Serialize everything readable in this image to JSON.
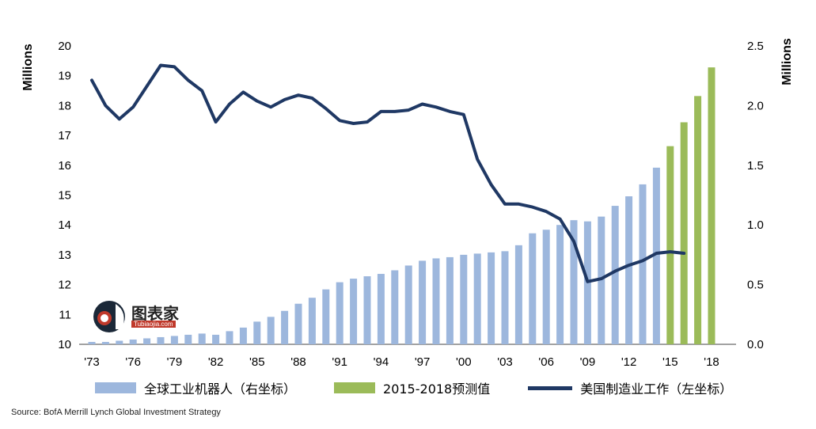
{
  "chart_data": {
    "type": "bar+line",
    "x_tick_labels": [
      "'73",
      "'76",
      "'79",
      "'82",
      "'85",
      "'88",
      "'91",
      "'94",
      "'97",
      "'00",
      "'03",
      "'06",
      "'09",
      "'12",
      "'15",
      "'18"
    ],
    "left_axis": {
      "label": "Millions",
      "min": 10,
      "max": 20,
      "ticks": [
        "10",
        "11",
        "12",
        "13",
        "14",
        "15",
        "16",
        "17",
        "18",
        "19",
        "20"
      ]
    },
    "right_axis": {
      "label": "Millions",
      "min": 0,
      "max": 2.5,
      "ticks": [
        "0.0",
        "0.5",
        "1.0",
        "1.5",
        "2.0",
        "2.5"
      ]
    },
    "series": [
      {
        "name": "全球工业机器人（右坐标）",
        "type": "bar",
        "axis": "right",
        "color": "#9db7dd",
        "x": [
          1973,
          1974,
          1975,
          1976,
          1977,
          1978,
          1979,
          1980,
          1981,
          1982,
          1983,
          1984,
          1985,
          1986,
          1987,
          1988,
          1989,
          1990,
          1991,
          1992,
          1993,
          1994,
          1995,
          1996,
          1997,
          1998,
          1999,
          2000,
          2001,
          2002,
          2003,
          2004,
          2005,
          2006,
          2007,
          2008,
          2009,
          2010,
          2011,
          2012,
          2013,
          2014
        ],
        "values": [
          0.02,
          0.02,
          0.03,
          0.04,
          0.05,
          0.06,
          0.07,
          0.08,
          0.09,
          0.08,
          0.11,
          0.14,
          0.19,
          0.23,
          0.28,
          0.34,
          0.39,
          0.46,
          0.52,
          0.55,
          0.57,
          0.59,
          0.62,
          0.66,
          0.7,
          0.72,
          0.73,
          0.75,
          0.76,
          0.77,
          0.78,
          0.83,
          0.93,
          0.96,
          1.0,
          1.04,
          1.03,
          1.07,
          1.16,
          1.24,
          1.34,
          1.48
        ]
      },
      {
        "name": "2015-2018预测值",
        "type": "bar",
        "axis": "right",
        "color": "#9bbb59",
        "x": [
          2015,
          2016,
          2017,
          2018
        ],
        "values": [
          1.66,
          1.86,
          2.08,
          2.32
        ]
      },
      {
        "name": "美国制造业工作（左坐标）",
        "type": "line",
        "axis": "left",
        "color": "#1f3864",
        "x": [
          1973,
          1974,
          1975,
          1976,
          1977,
          1978,
          1979,
          1980,
          1981,
          1982,
          1983,
          1984,
          1985,
          1986,
          1987,
          1988,
          1989,
          1990,
          1991,
          1992,
          1993,
          1994,
          1995,
          1996,
          1997,
          1998,
          1999,
          2000,
          2001,
          2002,
          2003,
          2004,
          2005,
          2006,
          2007,
          2008,
          2009,
          2010,
          2011,
          2012,
          2013,
          2014,
          2015,
          2016
        ],
        "values": [
          18.85,
          18.0,
          17.55,
          17.95,
          18.65,
          19.35,
          19.3,
          18.85,
          18.5,
          17.45,
          18.05,
          18.45,
          18.15,
          17.95,
          18.2,
          18.35,
          18.25,
          17.9,
          17.5,
          17.4,
          17.45,
          17.8,
          17.8,
          17.85,
          18.05,
          17.95,
          17.8,
          17.7,
          16.2,
          15.35,
          14.7,
          14.7,
          14.6,
          14.45,
          14.2,
          13.45,
          12.1,
          12.2,
          12.45,
          12.65,
          12.8,
          13.05,
          13.1,
          13.05
        ]
      }
    ],
    "legend_position": "bottom",
    "grid": false
  },
  "source_text": "Source: BofA Merrill Lynch Global Investment Strategy",
  "logo": {
    "text": "图表家",
    "subtext": "Tubiaojia.com"
  }
}
